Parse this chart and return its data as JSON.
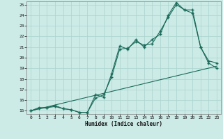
{
  "xlabel": "Humidex (Indice chaleur)",
  "bg_color": "#cceae6",
  "grid_color": "#aad4ce",
  "line_color": "#1a6b5a",
  "xlim": [
    -0.5,
    23.5
  ],
  "ylim": [
    14.7,
    25.3
  ],
  "xticks": [
    0,
    1,
    2,
    3,
    4,
    5,
    6,
    7,
    8,
    9,
    10,
    11,
    12,
    13,
    14,
    15,
    16,
    17,
    18,
    19,
    20,
    21,
    22,
    23
  ],
  "yticks": [
    15,
    16,
    17,
    18,
    19,
    20,
    21,
    22,
    23,
    24,
    25
  ],
  "line1_x": [
    0,
    1,
    2,
    3,
    4,
    5,
    6,
    7,
    8,
    9,
    10,
    11,
    12,
    13,
    14,
    15,
    16,
    17,
    18,
    19,
    20,
    21,
    22,
    23
  ],
  "line1_y": [
    15.0,
    15.3,
    15.3,
    15.5,
    15.2,
    15.1,
    14.85,
    14.85,
    16.5,
    16.3,
    18.5,
    21.1,
    20.8,
    21.7,
    21.0,
    21.7,
    22.2,
    24.0,
    25.2,
    24.5,
    24.5,
    21.0,
    19.7,
    19.5
  ],
  "line2_x": [
    0,
    1,
    2,
    3,
    4,
    5,
    6,
    7,
    8,
    9,
    10,
    11,
    12,
    13,
    14,
    15,
    16,
    17,
    18,
    19,
    20,
    21,
    22,
    23
  ],
  "line2_y": [
    15.0,
    15.2,
    15.3,
    15.4,
    15.2,
    15.1,
    14.85,
    14.85,
    16.2,
    16.5,
    18.2,
    20.8,
    20.9,
    21.5,
    21.2,
    21.3,
    22.5,
    23.8,
    25.0,
    24.5,
    24.2,
    21.0,
    19.5,
    19.0
  ],
  "line3_x": [
    0,
    23
  ],
  "line3_y": [
    15.0,
    19.2
  ]
}
